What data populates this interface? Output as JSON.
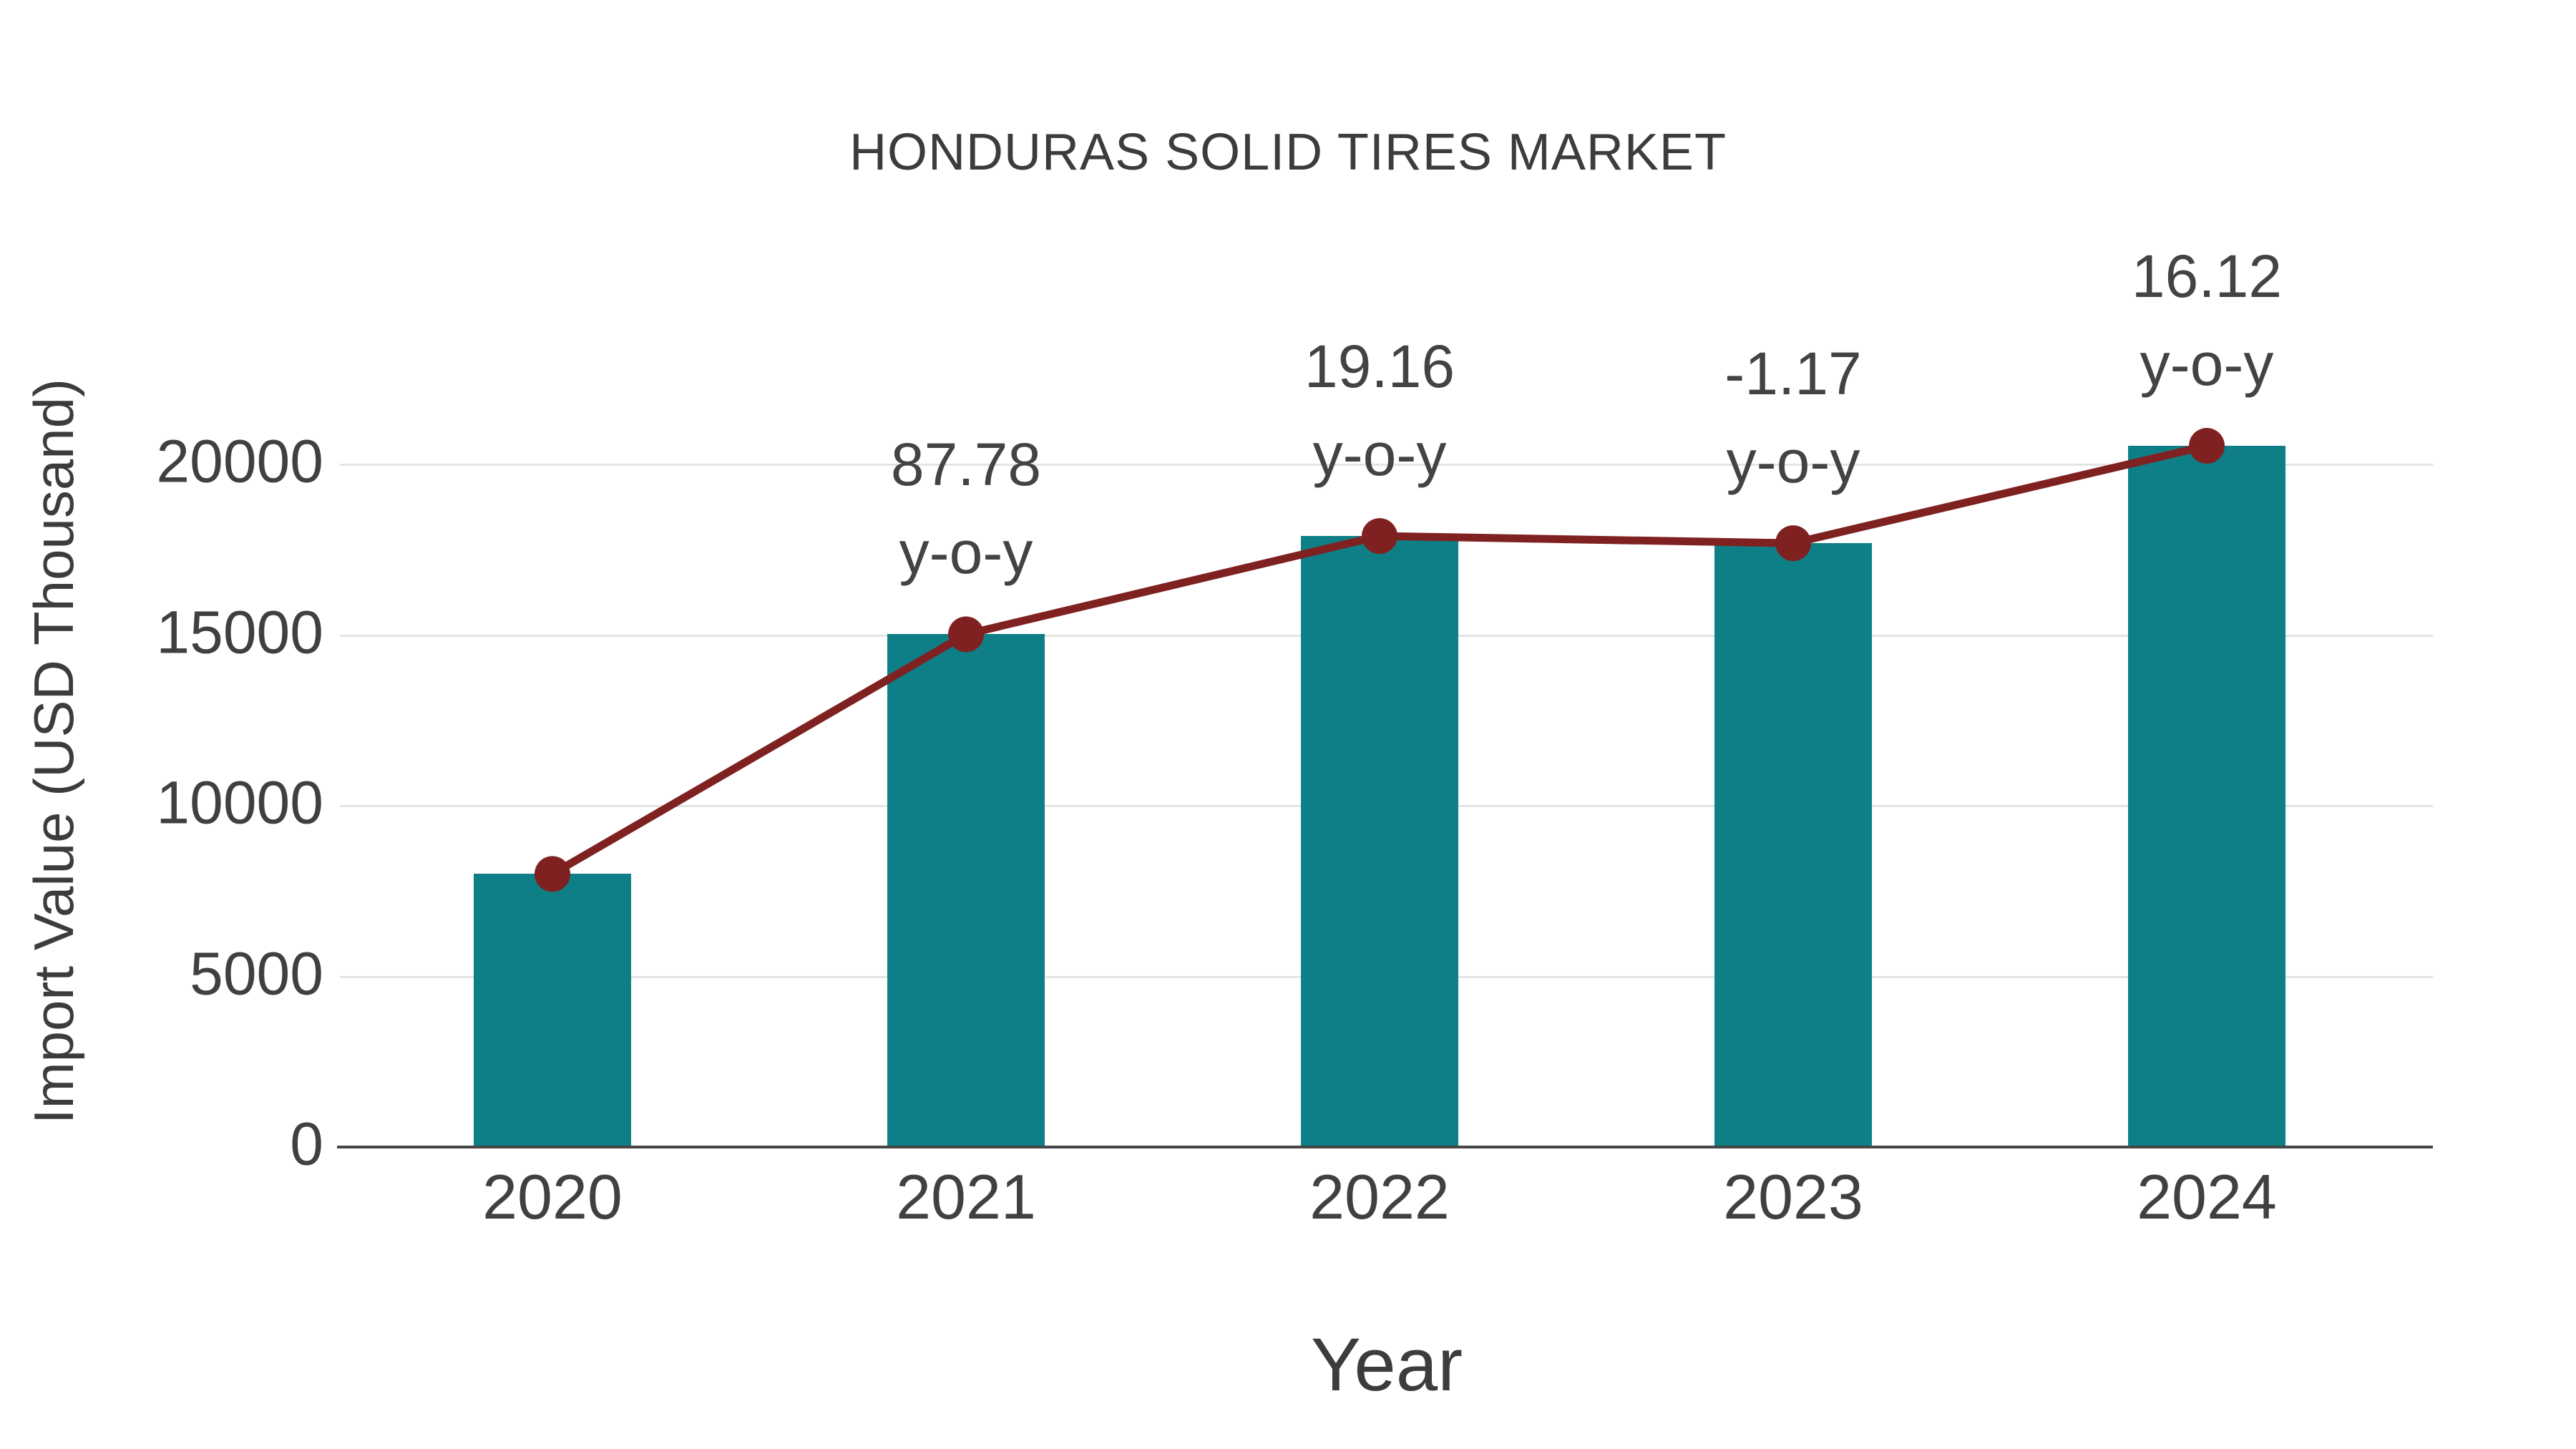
{
  "title": "HONDURAS SOLID TIRES MARKET",
  "chart_data": {
    "type": "bar",
    "title": "HONDURAS SOLID TIRES MARKET",
    "categories": [
      "2020",
      "2021",
      "2022",
      "2023",
      "2024"
    ],
    "series": [
      {
        "name": "Import Value (bars)",
        "type": "bar",
        "values": [
          8000,
          15022,
          17901,
          17692,
          20544
        ]
      },
      {
        "name": "Import Value trend (line with markers)",
        "type": "line",
        "values": [
          8000,
          15022,
          17901,
          17692,
          20544
        ]
      }
    ],
    "annotations": [
      {
        "category": "2021",
        "value_label": "87.78",
        "unit_label": "y-o-y"
      },
      {
        "category": "2022",
        "value_label": "19.16",
        "unit_label": "y-o-y"
      },
      {
        "category": "2023",
        "value_label": "-1.17",
        "unit_label": "y-o-y"
      },
      {
        "category": "2024",
        "value_label": "16.12",
        "unit_label": "y-o-y"
      }
    ],
    "xlabel": "Year",
    "ylabel": "Import Value (USD Thousand)",
    "yticks": [
      0,
      5000,
      10000,
      15000,
      20000
    ],
    "ylim": [
      0,
      23500
    ],
    "grid": true,
    "legend_position": "none"
  },
  "colors": {
    "bar": "#0e7f86",
    "line": "#7f2121",
    "marker": "#7f2121",
    "grid": "#e4e4e4",
    "axis_line": "#474747",
    "text": "#3c3c3c",
    "tick_text": "#404040"
  }
}
